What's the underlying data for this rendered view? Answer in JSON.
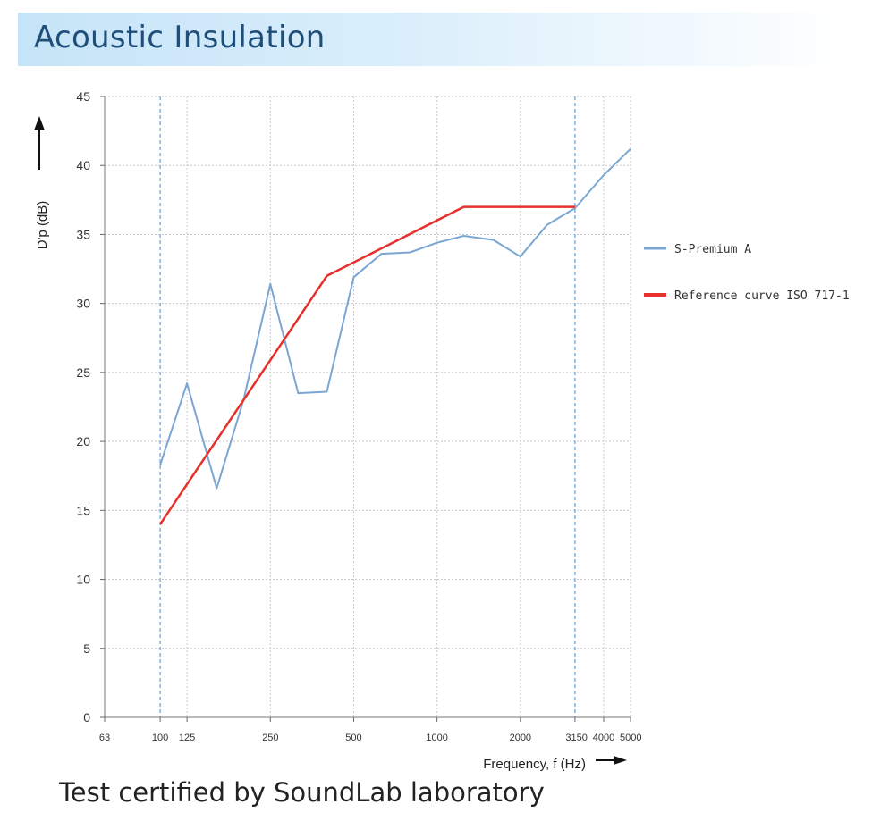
{
  "page": {
    "title": "Acoustic Insulation",
    "caption": "Test certified by SoundLab laboratory"
  },
  "colors": {
    "series_1": "#7aa6d4",
    "series_2": "#e8302a",
    "grid": "#c9c9c9",
    "marker_line": "#7fb2e5"
  },
  "chart_data": {
    "type": "line",
    "xlabel": "Frequency, f (Hz)",
    "ylabel": "D'p (dB)",
    "x_scale": "log",
    "xlim": [
      63,
      5000
    ],
    "ylim": [
      0,
      45
    ],
    "xticks": [
      63,
      100,
      125,
      250,
      500,
      1000,
      2000,
      3150,
      4000,
      5000
    ],
    "xtick_labels": [
      "63",
      "100",
      "125",
      "250",
      "500",
      "1000",
      "2000",
      "3150",
      "4000",
      "5000"
    ],
    "yticks": [
      0,
      5,
      10,
      15,
      20,
      25,
      30,
      35,
      40,
      45
    ],
    "marked_frequencies": [
      100,
      3150
    ],
    "grid": true,
    "legend_position": "right",
    "series": [
      {
        "name": "S-Premium A",
        "color": "#7aa6d4",
        "x": [
          100,
          125,
          160,
          200,
          250,
          315,
          400,
          500,
          630,
          800,
          1000,
          1250,
          1600,
          2000,
          2500,
          3150,
          4000,
          5000
        ],
        "y": [
          18.3,
          24.2,
          16.6,
          23.0,
          31.4,
          23.5,
          23.6,
          31.9,
          33.6,
          33.7,
          34.4,
          34.9,
          34.6,
          33.4,
          35.7,
          36.9,
          39.3,
          41.2
        ]
      },
      {
        "name": "Reference curve ISO 717-1",
        "color": "#e8302a",
        "x": [
          100,
          400,
          1250,
          3150
        ],
        "y": [
          14.0,
          32.0,
          37.0,
          37.0
        ]
      }
    ]
  }
}
